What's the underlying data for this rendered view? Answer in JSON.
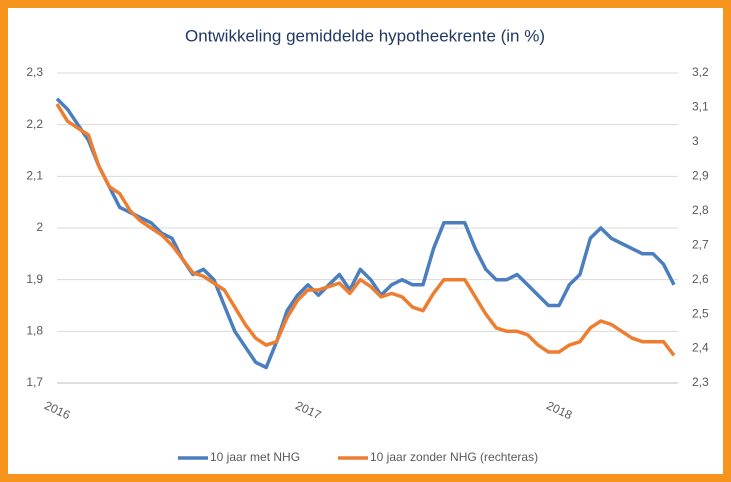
{
  "chart_data": {
    "type": "line",
    "title": "Ontwikkeling gemiddelde hypotheekrente (in %)",
    "categories": [
      "2016",
      null,
      null,
      null,
      null,
      null,
      null,
      null,
      null,
      null,
      null,
      null,
      null,
      null,
      null,
      null,
      null,
      null,
      null,
      null,
      null,
      null,
      null,
      null,
      "2017",
      null,
      null,
      null,
      null,
      null,
      null,
      null,
      null,
      null,
      null,
      null,
      null,
      null,
      null,
      null,
      null,
      null,
      null,
      null,
      null,
      null,
      null,
      null,
      "2018",
      null,
      null,
      null,
      null,
      null,
      null,
      null,
      null,
      null,
      null,
      null
    ],
    "series": [
      {
        "name": "10 jaar met NHG",
        "color": "#4a7ebe",
        "axis": "y",
        "values": [
          2.25,
          2.23,
          2.2,
          2.17,
          2.12,
          2.08,
          2.04,
          2.03,
          2.02,
          2.01,
          1.99,
          1.98,
          1.94,
          1.91,
          1.92,
          1.9,
          1.85,
          1.8,
          1.77,
          1.74,
          1.73,
          1.78,
          1.84,
          1.87,
          1.89,
          1.87,
          1.89,
          1.91,
          1.88,
          1.92,
          1.9,
          1.87,
          1.89,
          1.9,
          1.89,
          1.89,
          1.96,
          2.01,
          2.01,
          2.01,
          1.96,
          1.92,
          1.9,
          1.9,
          1.91,
          1.89,
          1.87,
          1.85,
          1.85,
          1.89,
          1.91,
          1.98,
          2.0,
          1.98,
          1.97,
          1.96,
          1.95,
          1.95,
          1.93,
          1.89
        ]
      },
      {
        "name": "10 jaar zonder NHG (rechteras)",
        "color": "#ed7d31",
        "axis": "y2",
        "values": [
          3.11,
          3.06,
          3.04,
          3.02,
          2.93,
          2.87,
          2.85,
          2.8,
          2.77,
          2.75,
          2.73,
          2.7,
          2.66,
          2.62,
          2.61,
          2.59,
          2.57,
          2.52,
          2.47,
          2.43,
          2.41,
          2.42,
          2.49,
          2.54,
          2.57,
          2.57,
          2.58,
          2.59,
          2.56,
          2.6,
          2.58,
          2.55,
          2.56,
          2.55,
          2.52,
          2.51,
          2.56,
          2.6,
          2.6,
          2.6,
          2.55,
          2.5,
          2.46,
          2.45,
          2.45,
          2.44,
          2.41,
          2.39,
          2.39,
          2.41,
          2.42,
          2.46,
          2.48,
          2.47,
          2.45,
          2.43,
          2.42,
          2.42,
          2.42,
          2.38
        ]
      }
    ],
    "ylim": [
      1.7,
      2.3
    ],
    "yticks": [
      {
        "value": 1.7,
        "label": "1,7"
      },
      {
        "value": 1.8,
        "label": "1,8"
      },
      {
        "value": 1.9,
        "label": "1,9"
      },
      2,
      {
        "value": 2.1,
        "label": "2,1"
      },
      {
        "value": 2.2,
        "label": "2,2"
      },
      {
        "value": 2.3,
        "label": "2,3"
      }
    ],
    "y2lim": [
      2.3,
      3.2
    ],
    "y2ticks": [
      {
        "value": 2.3,
        "label": "2,3"
      },
      {
        "value": 2.4,
        "label": "2,4"
      },
      {
        "value": 2.5,
        "label": "2,5"
      },
      {
        "value": 2.6,
        "label": "2,6"
      },
      {
        "value": 2.7,
        "label": "2,7"
      },
      {
        "value": 2.8,
        "label": "2,8"
      },
      {
        "value": 2.9,
        "label": "2,9"
      },
      3,
      {
        "value": 3.1,
        "label": "3,1"
      },
      {
        "value": 3.2,
        "label": "3,2"
      }
    ],
    "grid": true,
    "legend": "bottom"
  }
}
